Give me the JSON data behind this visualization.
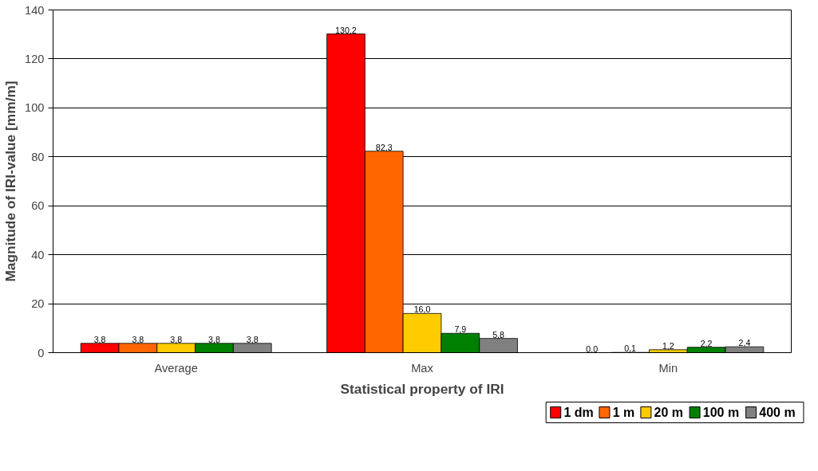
{
  "chart_data": {
    "type": "bar",
    "xlabel": "Statistical property of IRI",
    "ylabel": "Magnitude of IRI-value [mm/m]",
    "categories": [
      "Average",
      "Max",
      "Min"
    ],
    "series": [
      {
        "name": "1 dm",
        "color": "#ff0000",
        "values": [
          3.8,
          130.2,
          0.0
        ],
        "value_labels": [
          "3,8",
          "130,2",
          "0,0"
        ]
      },
      {
        "name": "1 m",
        "color": "#ff6600",
        "values": [
          3.8,
          82.3,
          0.1
        ],
        "value_labels": [
          "3,8",
          "82,3",
          "0,1"
        ]
      },
      {
        "name": "20 m",
        "color": "#ffcc00",
        "values": [
          3.8,
          16.0,
          1.2
        ],
        "value_labels": [
          "3,8",
          "16,0",
          "1,2"
        ]
      },
      {
        "name": "100 m",
        "color": "#008000",
        "values": [
          3.8,
          7.9,
          2.2
        ],
        "value_labels": [
          "3,8",
          "7,9",
          "2,2"
        ]
      },
      {
        "name": "400 m",
        "color": "#808080",
        "values": [
          3.8,
          5.8,
          2.4
        ],
        "value_labels": [
          "3,8",
          "5,8",
          "2,4"
        ]
      }
    ],
    "ylim": [
      0,
      140
    ],
    "yticks": [
      0,
      20,
      40,
      60,
      80,
      100,
      120,
      140
    ],
    "grid": "y",
    "legend": "bottom right"
  }
}
